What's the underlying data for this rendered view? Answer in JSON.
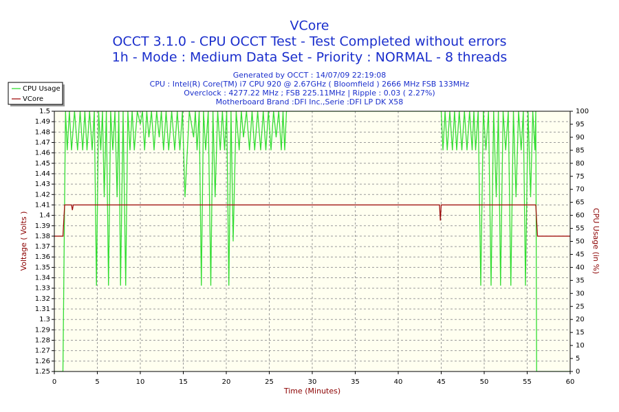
{
  "chart_data": {
    "type": "line",
    "title": "VCore",
    "subtitle": [
      "OCCT 3.1.0 - CPU OCCT Test - Test Completed without errors",
      "1h - Mode : Medium Data Set - Priority : NORMAL - 8 threads"
    ],
    "info": [
      "Generated by OCCT : 14/07/09 22:19:08",
      "CPU : Intel(R) Core(TM) i7 CPU 920 @ 2.67GHz ( Bloomfield ) 2666 MHz FSB 133MHz",
      "Overclock : 4277.22 MHz ; FSB 225.11MHz | Ripple : 0.03 ( 2.27%)",
      "Motherboard Brand :DFI Inc.,Serie :DFI LP DK X58"
    ],
    "xlabel": "Time (Minutes)",
    "ylabel": "Voltage ( Volts )",
    "y2label": "CPU Usage (in %)",
    "xlim": [
      0,
      60
    ],
    "xticks": [
      0,
      5,
      10,
      15,
      20,
      25,
      30,
      35,
      40,
      45,
      50,
      55,
      60
    ],
    "ylim": [
      1.25,
      1.5
    ],
    "yticks": [
      1.25,
      1.26,
      1.27,
      1.28,
      1.29,
      1.3,
      1.31,
      1.32,
      1.33,
      1.34,
      1.35,
      1.36,
      1.37,
      1.38,
      1.39,
      1.4,
      1.41,
      1.42,
      1.43,
      1.44,
      1.45,
      1.46,
      1.47,
      1.48,
      1.49,
      1.5
    ],
    "y2lim": [
      0,
      100
    ],
    "y2ticks": [
      0,
      5,
      10,
      15,
      20,
      25,
      30,
      35,
      40,
      45,
      50,
      55,
      60,
      65,
      70,
      75,
      80,
      85,
      90,
      95,
      100
    ],
    "grid": true,
    "legend": "top-left",
    "series": [
      {
        "name": "CPU Usage",
        "color": "#33dd33",
        "axis": "y2",
        "x": [
          0,
          1,
          1.3,
          1.5,
          1.75,
          2,
          2.35,
          2.7,
          3,
          3.3,
          3.55,
          3.8,
          4.1,
          4.4,
          4.65,
          4.9,
          5.15,
          5.4,
          5.6,
          5.8,
          6.05,
          6.3,
          6.55,
          6.8,
          7.05,
          7.3,
          7.5,
          7.7,
          8,
          8.3,
          8.55,
          8.8,
          9.05,
          9.3,
          9.65,
          10,
          10.25,
          10.5,
          10.75,
          11,
          11.3,
          11.6,
          11.9,
          12.2,
          12.45,
          12.7,
          13,
          13.3,
          13.65,
          14,
          14.3,
          14.6,
          14.9,
          15.2,
          15.7,
          16.2,
          16.4,
          16.6,
          16.85,
          17.1,
          17.35,
          17.6,
          17.9,
          18.2,
          18.45,
          18.7,
          19,
          19.3,
          19.55,
          19.8,
          20.05,
          20.3,
          20.55,
          20.8,
          21.15,
          21.5,
          21.75,
          22,
          22.35,
          22.7,
          23,
          23.3,
          23.65,
          24,
          24.3,
          24.6,
          24.9,
          25.2,
          25.5,
          25.8,
          26.1,
          26.4,
          26.6,
          26.8,
          27,
          45,
          45.2,
          45.45,
          45.7,
          46,
          46.3,
          46.55,
          46.8,
          47.1,
          47.4,
          47.7,
          48,
          48.3,
          48.6,
          48.8,
          49,
          49.3,
          49.6,
          49.9,
          50.2,
          50.5,
          50.8,
          51.1,
          51.4,
          51.65,
          51.9,
          52.2,
          52.5,
          52.8,
          53.1,
          53.4,
          53.7,
          54,
          54.3,
          54.55,
          54.8,
          55.1,
          55.4,
          55.65,
          55.9,
          56,
          56.1,
          60
        ],
        "values": [
          0,
          0,
          100,
          85,
          100,
          85,
          100,
          85,
          100,
          85,
          100,
          85,
          100,
          85,
          100,
          33,
          100,
          85,
          100,
          67,
          100,
          33,
          100,
          85,
          100,
          67,
          100,
          33,
          100,
          33,
          100,
          85,
          100,
          85,
          100,
          95,
          100,
          85,
          100,
          90,
          100,
          85,
          100,
          90,
          100,
          85,
          100,
          85,
          100,
          85,
          100,
          85,
          100,
          67,
          100,
          90,
          100,
          85,
          100,
          33,
          100,
          85,
          100,
          33,
          100,
          67,
          100,
          85,
          100,
          85,
          100,
          33,
          100,
          50,
          100,
          85,
          100,
          90,
          100,
          85,
          100,
          85,
          100,
          85,
          100,
          85,
          100,
          85,
          100,
          90,
          100,
          85,
          100,
          85,
          100,
          100,
          85,
          100,
          85,
          100,
          85,
          100,
          85,
          100,
          85,
          100,
          85,
          100,
          85,
          100,
          85,
          100,
          33,
          100,
          85,
          100,
          33,
          100,
          67,
          100,
          33,
          100,
          85,
          100,
          33,
          100,
          67,
          100,
          85,
          100,
          33,
          100,
          67,
          100,
          85,
          100,
          0,
          0
        ]
      },
      {
        "name": "VCore",
        "color": "#a01010",
        "x": [
          0,
          1,
          1.2,
          2,
          2.1,
          2.2,
          44.8,
          44.9,
          45,
          56,
          56.2,
          60
        ],
        "values": [
          1.38,
          1.38,
          1.41,
          1.41,
          1.405,
          1.41,
          1.41,
          1.395,
          1.41,
          1.41,
          1.38,
          1.38
        ]
      }
    ]
  }
}
